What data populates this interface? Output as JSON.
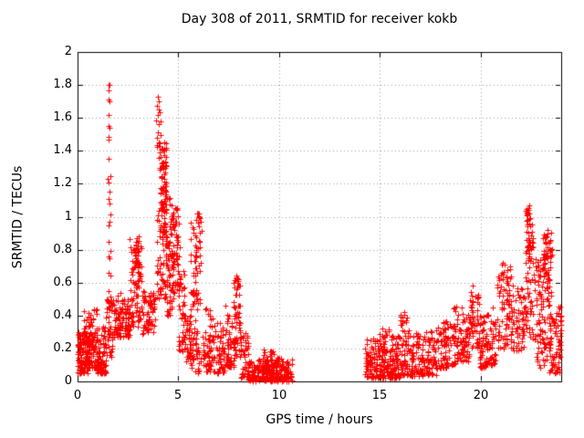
{
  "chart_data": {
    "type": "scatter",
    "title": "Day 308 of 2011, SRMTID for receiver kokb",
    "xlabel": "GPS time / hours",
    "ylabel": "SRMTID / TECUs",
    "xlim": [
      0,
      24
    ],
    "ylim": [
      0,
      2
    ],
    "xticks": [
      0,
      5,
      10,
      15,
      20
    ],
    "xtick_labels": [
      "0",
      "5",
      "10",
      "15",
      "20"
    ],
    "yticks": [
      0,
      0.2,
      0.4,
      0.6,
      0.8,
      1,
      1.2,
      1.4,
      1.6,
      1.8,
      2
    ],
    "ytick_labels": [
      "0",
      "0.2",
      "0.4",
      "0.6",
      "0.8",
      "1",
      "1.2",
      "1.4",
      "1.6",
      "1.8",
      "2"
    ],
    "grid": true,
    "grid_style": "dotted",
    "grid_color": "#9e9e9e",
    "axis_color": "#000000",
    "marker": "plus",
    "marker_color": "#ff0000",
    "background_color": "#ffffff",
    "legend": "none",
    "data_gap_hours": [
      10.7,
      14.25
    ],
    "max_value_tecu": 1.8,
    "max_value_hour": 1.55,
    "seed": 308,
    "segments_schema": [
      "t_start_h",
      "t_end_h",
      "y_min_tecu",
      "y_max_tecu",
      "n_points",
      "bottom_bias_power"
    ],
    "cluster_segments": [
      [
        0.0,
        0.5,
        0.05,
        0.3,
        95,
        1.5
      ],
      [
        0.0,
        0.15,
        0.12,
        0.26,
        15,
        1.0
      ],
      [
        0.3,
        0.6,
        0.1,
        0.45,
        40,
        1.6
      ],
      [
        0.5,
        0.95,
        0.08,
        0.44,
        80,
        1.7
      ],
      [
        0.95,
        1.4,
        0.05,
        0.35,
        80,
        1.6
      ],
      [
        1.4,
        1.75,
        0.15,
        0.5,
        45,
        1.2
      ],
      [
        1.5,
        1.66,
        0.45,
        1.5,
        12,
        1.0
      ],
      [
        1.75,
        2.15,
        0.27,
        0.55,
        55,
        1.4
      ],
      [
        2.15,
        2.6,
        0.27,
        0.5,
        60,
        1.3
      ],
      [
        2.6,
        3.2,
        0.33,
        0.88,
        80,
        1.5
      ],
      [
        2.85,
        3.12,
        0.5,
        0.86,
        25,
        1.0
      ],
      [
        3.2,
        3.85,
        0.28,
        0.56,
        65,
        1.3
      ],
      [
        3.9,
        4.12,
        0.5,
        1.72,
        30,
        0.95
      ],
      [
        4.05,
        4.42,
        0.5,
        1.45,
        80,
        1.1
      ],
      [
        4.12,
        4.4,
        0.85,
        1.42,
        50,
        0.9
      ],
      [
        4.42,
        4.68,
        0.38,
        1.12,
        55,
        1.2
      ],
      [
        4.68,
        5.05,
        0.5,
        1.06,
        70,
        1.0
      ],
      [
        5.0,
        5.35,
        0.18,
        0.68,
        45,
        1.4
      ],
      [
        5.3,
        5.62,
        0.12,
        0.4,
        40,
        1.4
      ],
      [
        5.6,
        6.15,
        0.3,
        1.02,
        70,
        0.85
      ],
      [
        5.6,
        6.3,
        0.05,
        0.3,
        45,
        1.3
      ],
      [
        6.3,
        6.78,
        0.06,
        0.45,
        60,
        1.6
      ],
      [
        6.78,
        7.3,
        0.05,
        0.36,
        60,
        1.5
      ],
      [
        7.3,
        7.78,
        0.08,
        0.46,
        55,
        1.3
      ],
      [
        7.75,
        8.1,
        0.15,
        0.65,
        60,
        1.1
      ],
      [
        8.1,
        8.5,
        0.02,
        0.3,
        45,
        1.8
      ],
      [
        8.45,
        10.68,
        0.0,
        0.14,
        235,
        1.3
      ],
      [
        9.2,
        10.0,
        0.04,
        0.2,
        40,
        1.5
      ],
      [
        14.25,
        14.95,
        0.02,
        0.26,
        85,
        1.7
      ],
      [
        14.95,
        15.45,
        0.02,
        0.32,
        80,
        1.7
      ],
      [
        15.45,
        16.0,
        0.02,
        0.28,
        80,
        1.6
      ],
      [
        16.0,
        16.5,
        0.04,
        0.42,
        65,
        1.5
      ],
      [
        16.5,
        17.15,
        0.03,
        0.3,
        70,
        1.6
      ],
      [
        17.15,
        17.85,
        0.04,
        0.32,
        70,
        1.5
      ],
      [
        17.85,
        18.45,
        0.08,
        0.38,
        65,
        1.4
      ],
      [
        18.45,
        19.05,
        0.1,
        0.46,
        60,
        1.3
      ],
      [
        19.05,
        19.45,
        0.12,
        0.42,
        45,
        1.3
      ],
      [
        19.45,
        19.95,
        0.2,
        0.56,
        55,
        1.1
      ],
      [
        19.95,
        20.3,
        0.08,
        0.42,
        50,
        1.3
      ],
      [
        20.3,
        20.75,
        0.1,
        0.45,
        50,
        1.3
      ],
      [
        20.8,
        21.5,
        0.2,
        0.72,
        80,
        1.1
      ],
      [
        21.5,
        22.18,
        0.18,
        0.6,
        70,
        1.2
      ],
      [
        22.2,
        22.68,
        0.25,
        1.06,
        65,
        1.1
      ],
      [
        22.3,
        22.5,
        0.6,
        1.05,
        25,
        0.85
      ],
      [
        22.7,
        23.1,
        0.25,
        0.75,
        45,
        1.1
      ],
      [
        23.1,
        23.55,
        0.2,
        0.92,
        60,
        1.0
      ],
      [
        23.15,
        23.45,
        0.55,
        0.9,
        30,
        0.8
      ],
      [
        22.75,
        23.3,
        0.08,
        0.25,
        20,
        1.0
      ],
      [
        23.4,
        23.9,
        0.05,
        0.45,
        50,
        1.3
      ],
      [
        23.85,
        24.0,
        0.15,
        0.46,
        25,
        1.0
      ]
    ],
    "peak_points": [
      [
        1.55,
        1.8
      ],
      [
        1.58,
        1.8
      ],
      [
        1.55,
        1.77
      ],
      [
        1.56,
        1.71
      ],
      [
        1.58,
        1.7
      ],
      [
        1.55,
        1.62
      ],
      [
        1.56,
        1.55
      ],
      [
        1.57,
        1.54
      ],
      [
        1.55,
        1.47
      ],
      [
        1.56,
        1.35
      ],
      [
        1.55,
        1.21
      ],
      [
        1.57,
        1.08
      ],
      [
        1.56,
        0.95
      ],
      [
        1.55,
        0.85
      ],
      [
        1.57,
        0.75
      ],
      [
        1.56,
        0.66
      ],
      [
        1.55,
        0.55
      ],
      [
        4.0,
        1.73
      ],
      [
        4.02,
        1.7
      ],
      [
        4.05,
        1.65
      ],
      [
        4.0,
        1.62
      ],
      [
        4.03,
        1.56
      ],
      [
        4.01,
        1.45
      ],
      [
        4.3,
        1.45
      ],
      [
        2.95,
        0.87
      ],
      [
        3.0,
        0.84
      ],
      [
        7.9,
        0.63
      ],
      [
        7.95,
        0.62
      ],
      [
        16.2,
        0.42
      ],
      [
        19.6,
        0.58
      ],
      [
        21.1,
        0.72
      ],
      [
        22.4,
        1.07
      ],
      [
        22.38,
        1.05
      ],
      [
        22.42,
        1.02
      ],
      [
        23.3,
        0.92
      ],
      [
        23.32,
        0.9
      ],
      [
        23.28,
        0.88
      ],
      [
        5.95,
        1.02
      ],
      [
        6.0,
        1.0
      ],
      [
        4.85,
        1.05
      ]
    ]
  }
}
